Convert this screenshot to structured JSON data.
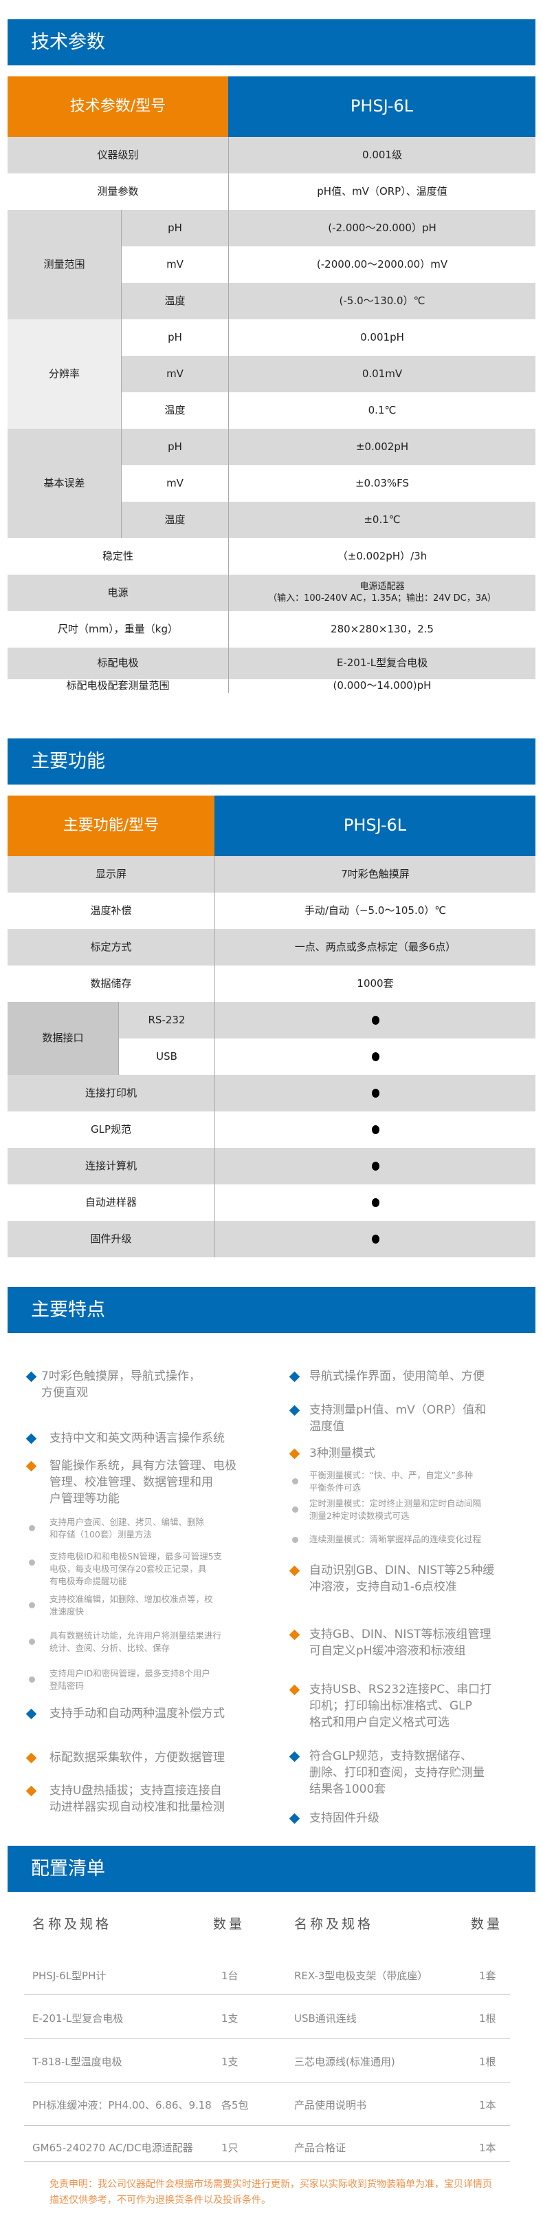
{
  "colors": {
    "blue": "#026bb5",
    "orange": "#ee8205",
    "bullet_gray": "#bbbbbb",
    "disclaimer": "#f0914a"
  },
  "tech": {
    "title": "技术参数",
    "hdr_left": "技术参数/型号",
    "hdr_right": "PHSJ-6L",
    "rows": [
      {
        "label": "仪器级别",
        "value": "0.001级"
      },
      {
        "label": "测量参数",
        "value": "pH值、mV（ORP）、温度值"
      },
      {
        "group": "测量范围",
        "sub": [
          {
            "label": "pH",
            "value": "(-2.000～20.000）pH"
          },
          {
            "label": "mV",
            "value": "(-2000.00～2000.00）mV"
          },
          {
            "label": "温度",
            "value": "(-5.0～130.0）℃"
          }
        ]
      },
      {
        "group": "分辨率",
        "sub": [
          {
            "label": "pH",
            "value": "0.001pH"
          },
          {
            "label": "mV",
            "value": "0.01mV"
          },
          {
            "label": "温度",
            "value": "0.1℃"
          }
        ]
      },
      {
        "group": "基本误差",
        "sub": [
          {
            "label": "pH",
            "value": "±0.002pH"
          },
          {
            "label": "mV",
            "value": "±0.03%FS"
          },
          {
            "label": "温度",
            "value": "±0.1℃"
          }
        ]
      },
      {
        "label": "稳定性",
        "value": "（±0.002pH）/3h"
      },
      {
        "label": "电源",
        "value": "电源适配器",
        "value2": "（输入：100-240V AC，1.35A；输出：24V DC，3A）"
      },
      {
        "label": "尺吋（mm），重量（kg）",
        "value": "280×280×130，2.5"
      },
      {
        "label": "标配电极",
        "value": "E-201-L型复合电极"
      },
      {
        "label": "标配电极配套测量范围",
        "value": "(0.000～14.000)pH"
      }
    ]
  },
  "func": {
    "title": "主要功能",
    "hdr_left": "主要功能/型号",
    "hdr_right": "PHSJ-6L",
    "rows": [
      {
        "label": "显示屏",
        "value": "7吋彩色触摸屏"
      },
      {
        "label": "温度补偿",
        "value": "手动/自动（−5.0～105.0）℃"
      },
      {
        "label": "标定方式",
        "value": "一点、两点或多点标定（最多6点）"
      },
      {
        "label": "数据储存",
        "value": "1000套"
      },
      {
        "group": "数据接口",
        "sub": [
          {
            "label": "RS-232",
            "supported": true
          },
          {
            "label": "USB",
            "supported": true
          }
        ]
      },
      {
        "label": "连接打印机",
        "supported": true
      },
      {
        "label": "GLP规范",
        "supported": true
      },
      {
        "label": "连接计算机",
        "supported": true
      },
      {
        "label": "自动进样器",
        "supported": true
      },
      {
        "label": "固件升级",
        "supported": true
      }
    ]
  },
  "features": {
    "title": "主要特点",
    "left": [
      {
        "text": "7吋彩色触摸屏，导航式操作，\n方便直观",
        "bullet": "blue-diamond"
      },
      {
        "text": "支持中文和英文两种语言操作系统",
        "bullet": "blue-diamond"
      },
      {
        "text": "智能操作系统，具有方法管理、电极\n管理、校准管理、数据管理和用\n户管理等功能",
        "bullet": "orange-diamond"
      },
      {
        "text": "支持用户查阅、创建、拷贝、编辑、删除\n和存储（100套）测量方法",
        "bullet": "gray-dot"
      },
      {
        "text": "支持电极ID和和电极SN管理，最多可管理5支\n电极，每支电极可保存20套校正记录，具\n有电极寿命提醒功能",
        "bullet": "gray-dot"
      },
      {
        "text": "支持校准编辑，如删除、增加校准点等，校\n准速度快",
        "bullet": "gray-dot"
      },
      {
        "text": "具有数据统计功能，允许用户将测量结果进行\n统计、查阅、分析、比较、保存",
        "bullet": "gray-dot"
      },
      {
        "text": "支持用户ID和密码管理，最多支持8个用户\n登陆密码",
        "bullet": "gray-dot"
      },
      {
        "text": "支持手动和自动两种温度补偿方式",
        "bullet": "blue-diamond"
      },
      {
        "text": "标配数据采集软件，方便数据管理",
        "bullet": "orange-diamond"
      },
      {
        "text": "支持U盘热插拔；支持直接连接自\n动进样器实现自动校准和批量检测",
        "bullet": "orange-diamond"
      }
    ],
    "right": [
      {
        "text": "导航式操作界面，使用简单、方便",
        "bullet": "blue-diamond"
      },
      {
        "text": "支持测量pH值、mV（ORP）值和\n温度值",
        "bullet": "blue-diamond"
      },
      {
        "text": "3种测量模式",
        "bullet": "orange-diamond"
      },
      {
        "text": "平衡测量模式：“快、中、严，自定义”多种\n平衡条件可选",
        "bullet": "gray-dot"
      },
      {
        "text": "定时测量模式：定时终止测量和定时自动间隔\n测量2种定时读数模式可选",
        "bullet": "gray-dot"
      },
      {
        "text": "连续测量模式：清晰掌握样品的连续变化过程",
        "bullet": "gray-dot"
      },
      {
        "text": "自动识别GB、DIN、NIST等25种缓\n冲溶液，支持自动1-6点校准",
        "bullet": "orange-diamond"
      },
      {
        "text": "支持GB、DIN、NIST等标液组管理\n可自定义pH缓冲溶液和标液组",
        "bullet": "orange-diamond"
      },
      {
        "text": "支持USB、RS232连接PC、串口打\n印机；打印输出标准格式、GLP\n格式和用户自定义格式可选",
        "bullet": "orange-diamond"
      },
      {
        "text": "符合GLP规范，支持数据储存、\n删除、打印和查阅，支持存贮测量\n结果各1000套",
        "bullet": "blue-diamond"
      },
      {
        "text": "支持固件升级",
        "bullet": "blue-diamond"
      }
    ]
  },
  "config": {
    "title": "配置清单",
    "col_name": "名称及规格",
    "col_qty": "数量",
    "rows": [
      [
        {
          "name": "PHSJ-6L型PH计",
          "qty": "1台"
        },
        {
          "name": "REX-3型电极支架（带底座）",
          "qty": "1套"
        }
      ],
      [
        {
          "name": "E-201-L型复合电极",
          "qty": "1支"
        },
        {
          "name": "USB通讯连线",
          "qty": "1根"
        }
      ],
      [
        {
          "name": "T-818-L型温度电极",
          "qty": "1支"
        },
        {
          "name": "三芯电源线(标准通用)",
          "qty": "1根"
        }
      ],
      [
        {
          "name": "PH标准缓冲液：PH4.00、6.86、9.18",
          "qty": "各5包"
        },
        {
          "name": "产品使用说明书",
          "qty": "1本"
        }
      ],
      [
        {
          "name": "GM65-240270 AC/DC电源适配器",
          "qty": "1只"
        },
        {
          "name": "产品合格证",
          "qty": "1本"
        }
      ]
    ],
    "disclaimer": "免责申明：我公司仪器配件会根据市场需要实时进行更新，买家以实际收到货物装箱单为准，宝贝详情页描述仅供参考，不可作为退换货条件以及投诉条件。"
  }
}
